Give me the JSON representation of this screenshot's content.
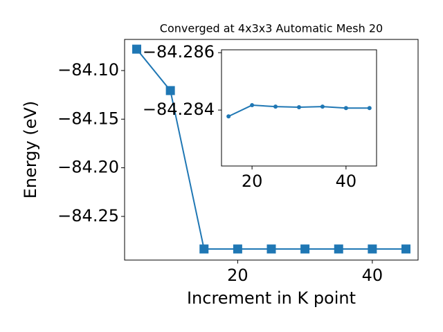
{
  "chart_data": [
    {
      "type": "line",
      "title": "Converged at 4x3x3 Automatic Mesh 20",
      "xlabel": "Increment in K point",
      "ylabel": "Energy (eV)",
      "x": [
        5,
        10,
        15,
        20,
        25,
        30,
        35,
        40,
        45
      ],
      "series": [
        {
          "color": "#1f77b4",
          "marker": "square",
          "values": [
            -84.078,
            -84.1206,
            -84.2835,
            -84.2835,
            -84.2835,
            -84.2835,
            -84.2835,
            -84.2835,
            -84.2835
          ]
        }
      ],
      "xlim": [
        3.2,
        46.8
      ],
      "ylim": [
        -84.2949,
        -84.068
      ],
      "xticks": [
        20,
        40
      ],
      "yticks": [
        {
          "value": -84.1,
          "label": "−84.10"
        },
        {
          "value": -84.15,
          "label": "−84.15"
        },
        {
          "value": -84.2,
          "label": "−84.20"
        },
        {
          "value": -84.25,
          "label": "−84.25"
        }
      ]
    },
    {
      "type": "line",
      "x": [
        15,
        20,
        25,
        30,
        35,
        40,
        45
      ],
      "series": [
        {
          "color": "#1f77b4",
          "marker": "circle",
          "values": [
            -84.28378,
            -84.28417,
            -84.28412,
            -84.2841,
            -84.28412,
            -84.28407,
            -84.28407
          ]
        }
      ],
      "xlim": [
        13.5,
        46.5
      ],
      "ylim": [
        -84.28205,
        -84.2861
      ],
      "xticks": [
        20,
        40
      ],
      "yticks": [
        {
          "value": -84.286,
          "label": "−84.286"
        },
        {
          "value": -84.284,
          "label": "−84.284"
        }
      ]
    }
  ]
}
